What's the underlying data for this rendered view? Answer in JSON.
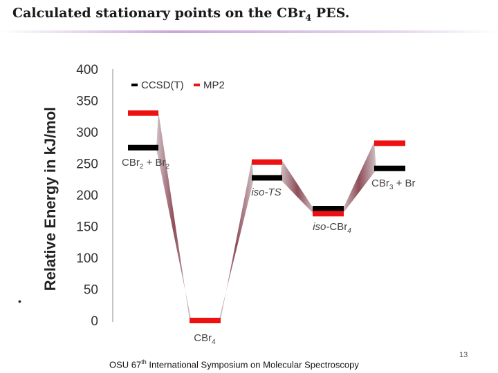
{
  "slide": {
    "title_main": "Calculated stationary points on the CBr",
    "title_sub": "4",
    "title_end": " PES.",
    "bullet": "•",
    "footer_pre": "OSU 67",
    "footer_sup": "th",
    "footer_post": " International Symposium on Molecular Spectroscopy",
    "page_number": "13"
  },
  "chart_data": {
    "type": "energy-level diagram",
    "title": "",
    "xlabel": "",
    "ylabel": "Relative Energy in kJ/mol",
    "ylim": [
      0,
      400
    ],
    "yticks": [
      0,
      50,
      100,
      150,
      200,
      250,
      300,
      350,
      400
    ],
    "grid": false,
    "legend_placement": "top",
    "categories": [
      {
        "label": "CBr",
        "sub": "2",
        "label2": " + Br",
        "sub2": "2",
        "italic": false
      },
      {
        "label": "CBr",
        "sub": "4",
        "label2": "",
        "sub2": "",
        "italic": false
      },
      {
        "label": "iso-TS",
        "sub": "",
        "label2": "",
        "sub2": "",
        "italic": true
      },
      {
        "label": "iso-",
        "sub": "",
        "label2": "CBr",
        "sub2": "4",
        "italic": true
      },
      {
        "label": "CBr",
        "sub": "3",
        "label2": " + Br",
        "sub2": "",
        "italic": false
      }
    ],
    "series": [
      {
        "name": "CCSD(T)",
        "color": "#000000",
        "values": [
          275,
          0,
          227,
          178,
          242
        ]
      },
      {
        "name": "MP2",
        "color": "#ee1111",
        "values": [
          330,
          0,
          252,
          170,
          282
        ]
      }
    ]
  }
}
